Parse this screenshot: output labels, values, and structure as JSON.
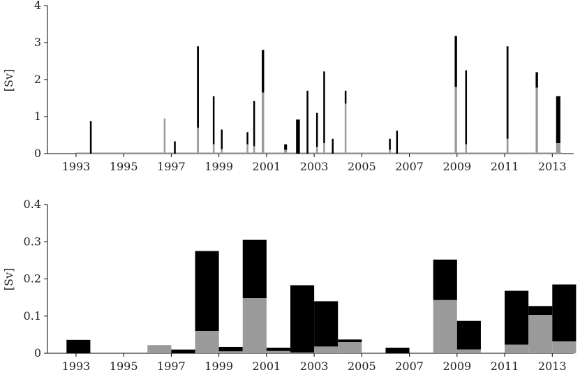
{
  "chart_data": [
    {
      "type": "bar",
      "stacked": true,
      "ylabel": "[Sv]",
      "ylim": [
        0,
        4
      ],
      "xlim": [
        1991.8,
        2013.9
      ],
      "yticks": [
        0,
        1,
        2,
        3,
        4
      ],
      "xticks": [
        1993,
        1995,
        1997,
        1999,
        2001,
        2003,
        2005,
        2007,
        2009,
        2011,
        2013
      ],
      "colors": {
        "lower": "#9a9a9a",
        "upper": "#000000"
      },
      "baseline": {
        "from": 1993.0,
        "to": 2013.4
      },
      "events": [
        {
          "x": 1993.62,
          "w": 0.06,
          "lower": 0.0,
          "total": 0.88
        },
        {
          "x": 1996.72,
          "w": 0.06,
          "lower": 0.95,
          "total": 0.95
        },
        {
          "x": 1997.15,
          "w": 0.06,
          "lower": 0.0,
          "total": 0.33
        },
        {
          "x": 1998.12,
          "w": 0.08,
          "lower": 0.7,
          "total": 2.9
        },
        {
          "x": 1998.78,
          "w": 0.06,
          "lower": 0.25,
          "total": 1.55
        },
        {
          "x": 1999.12,
          "w": 0.06,
          "lower": 0.12,
          "total": 0.65
        },
        {
          "x": 2000.2,
          "w": 0.06,
          "lower": 0.25,
          "total": 0.58
        },
        {
          "x": 2000.48,
          "w": 0.06,
          "lower": 0.2,
          "total": 1.42
        },
        {
          "x": 2000.85,
          "w": 0.1,
          "lower": 1.65,
          "total": 2.8
        },
        {
          "x": 2001.8,
          "w": 0.12,
          "lower": 0.1,
          "total": 0.25
        },
        {
          "x": 2002.32,
          "w": 0.16,
          "lower": 0.0,
          "total": 0.92
        },
        {
          "x": 2002.72,
          "w": 0.06,
          "lower": 0.0,
          "total": 1.7
        },
        {
          "x": 2003.12,
          "w": 0.06,
          "lower": 0.18,
          "total": 1.1
        },
        {
          "x": 2003.42,
          "w": 0.06,
          "lower": 0.28,
          "total": 2.22
        },
        {
          "x": 2003.78,
          "w": 0.06,
          "lower": 0.0,
          "total": 0.4
        },
        {
          "x": 2004.32,
          "w": 0.06,
          "lower": 1.35,
          "total": 1.7
        },
        {
          "x": 2006.18,
          "w": 0.06,
          "lower": 0.1,
          "total": 0.4
        },
        {
          "x": 2006.48,
          "w": 0.06,
          "lower": 0.0,
          "total": 0.62
        },
        {
          "x": 2008.95,
          "w": 0.1,
          "lower": 1.8,
          "total": 3.18
        },
        {
          "x": 2009.38,
          "w": 0.06,
          "lower": 0.25,
          "total": 2.25
        },
        {
          "x": 2011.12,
          "w": 0.08,
          "lower": 0.4,
          "total": 2.9
        },
        {
          "x": 2012.35,
          "w": 0.1,
          "lower": 1.78,
          "total": 2.2
        },
        {
          "x": 2013.25,
          "w": 0.18,
          "lower": 0.28,
          "total": 1.55
        }
      ]
    },
    {
      "type": "bar",
      "stacked": true,
      "ylabel": "[Sv]",
      "ylim": [
        0,
        0.4
      ],
      "xlim": [
        1991.8,
        2013.9
      ],
      "yticks": [
        0,
        0.1,
        0.2,
        0.3,
        0.4
      ],
      "ytick_labels": [
        "0",
        "0.1",
        "0.2",
        "0.3",
        "0.4"
      ],
      "xticks": [
        1993,
        1995,
        1997,
        1999,
        2001,
        2003,
        2005,
        2007,
        2009,
        2011,
        2013
      ],
      "colors": {
        "lower": "#9a9a9a",
        "upper": "#000000"
      },
      "bars": [
        {
          "x0": 1992.6,
          "x1": 1993.6,
          "lower": 0.0,
          "total": 0.036
        },
        {
          "x0": 1996.0,
          "x1": 1997.0,
          "lower": 0.022,
          "total": 0.022
        },
        {
          "x0": 1997.0,
          "x1": 1998.0,
          "lower": 0.0,
          "total": 0.01
        },
        {
          "x0": 1998.0,
          "x1": 1999.0,
          "lower": 0.06,
          "total": 0.275
        },
        {
          "x0": 1999.0,
          "x1": 2000.0,
          "lower": 0.005,
          "total": 0.017
        },
        {
          "x0": 2000.0,
          "x1": 2001.0,
          "lower": 0.148,
          "total": 0.305
        },
        {
          "x0": 2001.0,
          "x1": 2002.0,
          "lower": 0.006,
          "total": 0.015
        },
        {
          "x0": 2002.0,
          "x1": 2003.0,
          "lower": 0.002,
          "total": 0.183
        },
        {
          "x0": 2003.0,
          "x1": 2004.0,
          "lower": 0.018,
          "total": 0.14
        },
        {
          "x0": 2004.0,
          "x1": 2005.0,
          "lower": 0.03,
          "total": 0.037
        },
        {
          "x0": 2006.0,
          "x1": 2007.0,
          "lower": 0.0,
          "total": 0.015
        },
        {
          "x0": 2008.0,
          "x1": 2009.0,
          "lower": 0.143,
          "total": 0.252
        },
        {
          "x0": 2009.0,
          "x1": 2010.0,
          "lower": 0.01,
          "total": 0.087
        },
        {
          "x0": 2011.0,
          "x1": 2012.0,
          "lower": 0.023,
          "total": 0.168
        },
        {
          "x0": 2012.0,
          "x1": 2013.0,
          "lower": 0.103,
          "total": 0.127
        },
        {
          "x0": 2013.0,
          "x1": 2014.0,
          "lower": 0.032,
          "total": 0.185
        }
      ]
    }
  ]
}
